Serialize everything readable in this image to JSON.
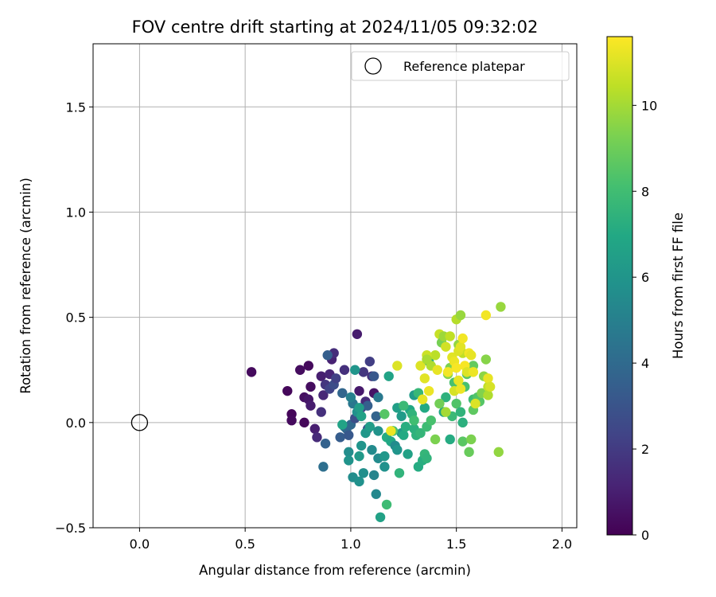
{
  "chart_data": {
    "type": "scatter",
    "title": "FOV centre drift starting at 2024/11/05 09:32:02",
    "xlabel": "Angular distance from reference (arcmin)",
    "ylabel": "Rotation from reference (arcmin)",
    "xlim": [
      -0.22,
      2.07
    ],
    "ylim": [
      -0.5,
      1.8
    ],
    "xticks": [
      0.0,
      0.5,
      1.0,
      1.5,
      2.0
    ],
    "xtick_labels": [
      "0.0",
      "0.5",
      "1.0",
      "1.5",
      "2.0"
    ],
    "yticks": [
      -0.5,
      0.0,
      0.5,
      1.0,
      1.5
    ],
    "ytick_labels": [
      "−0.5",
      "0.0",
      "0.5",
      "1.0",
      "1.5"
    ],
    "grid": true,
    "legend": {
      "position": "top-right",
      "entries": [
        "Reference platepar"
      ]
    },
    "colorbar": {
      "label": "Hours from first FF file",
      "range": [
        0,
        11.6
      ],
      "ticks": [
        0,
        2,
        4,
        6,
        8,
        10
      ],
      "tick_labels": [
        "0",
        "2",
        "4",
        "6",
        "8",
        "10"
      ],
      "colormap": "viridis"
    },
    "reference_point": {
      "name": "Reference platepar",
      "x": 0.0,
      "y": 0.0
    },
    "points": [
      [
        0.53,
        0.24,
        0.3
      ],
      [
        0.7,
        0.15,
        0.2
      ],
      [
        0.72,
        0.04,
        0.2
      ],
      [
        0.72,
        0.01,
        0.3
      ],
      [
        0.76,
        0.25,
        0.4
      ],
      [
        0.78,
        0.0,
        0.2
      ],
      [
        0.78,
        0.12,
        0.5
      ],
      [
        0.8,
        0.27,
        0.3
      ],
      [
        0.8,
        0.11,
        0.7
      ],
      [
        0.81,
        0.17,
        0.4
      ],
      [
        0.81,
        0.08,
        0.9
      ],
      [
        0.83,
        -0.03,
        1.0
      ],
      [
        0.84,
        -0.07,
        1.4
      ],
      [
        0.86,
        0.05,
        1.6
      ],
      [
        0.86,
        0.22,
        1.0
      ],
      [
        0.87,
        0.13,
        1.3
      ],
      [
        0.88,
        0.18,
        1.8
      ],
      [
        0.9,
        0.23,
        1.2
      ],
      [
        0.91,
        0.3,
        1.1
      ],
      [
        0.92,
        0.33,
        1.5
      ],
      [
        0.9,
        0.16,
        2.3
      ],
      [
        0.88,
        -0.1,
        3.6
      ],
      [
        0.87,
        -0.21,
        4.2
      ],
      [
        0.89,
        0.32,
        3.5
      ],
      [
        0.92,
        0.18,
        2.7
      ],
      [
        0.93,
        0.21,
        2.2
      ],
      [
        0.95,
        -0.07,
        3.4
      ],
      [
        0.96,
        0.14,
        3.8
      ],
      [
        0.97,
        0.25,
        1.6
      ],
      [
        0.97,
        -0.02,
        4.8
      ],
      [
        0.98,
        -0.03,
        3.9
      ],
      [
        0.99,
        -0.06,
        3.2
      ],
      [
        1.0,
        -0.01,
        3.9
      ],
      [
        1.01,
        0.09,
        4.6
      ],
      [
        1.02,
        0.02,
        2.8
      ],
      [
        1.03,
        0.42,
        0.9
      ],
      [
        1.04,
        0.15,
        0.8
      ],
      [
        1.05,
        0.07,
        2.5
      ],
      [
        1.06,
        0.24,
        1.8
      ],
      [
        1.07,
        0.1,
        1.4
      ],
      [
        1.08,
        0.08,
        3.5
      ],
      [
        1.08,
        -0.03,
        3.0
      ],
      [
        1.09,
        0.29,
        2.1
      ],
      [
        1.1,
        0.22,
        1.7
      ],
      [
        1.11,
        0.22,
        3.2
      ],
      [
        1.11,
        0.14,
        0.6
      ],
      [
        1.12,
        0.03,
        3.7
      ],
      [
        1.13,
        0.12,
        4.7
      ],
      [
        1.0,
        0.12,
        5.0
      ],
      [
        1.02,
        0.25,
        6.0
      ],
      [
        1.03,
        0.05,
        5.8
      ],
      [
        1.04,
        0.07,
        6.4
      ],
      [
        1.05,
        0.03,
        6.6
      ],
      [
        0.96,
        -0.01,
        6.7
      ],
      [
        0.99,
        -0.14,
        5.6
      ],
      [
        0.99,
        -0.18,
        5.9
      ],
      [
        1.01,
        -0.26,
        5.6
      ],
      [
        1.04,
        -0.28,
        5.8
      ],
      [
        1.06,
        -0.24,
        5.7
      ],
      [
        1.04,
        -0.16,
        6.2
      ],
      [
        1.05,
        -0.11,
        6.0
      ],
      [
        1.07,
        -0.05,
        6.1
      ],
      [
        1.09,
        -0.02,
        6.4
      ],
      [
        1.1,
        -0.13,
        5.5
      ],
      [
        1.11,
        -0.25,
        5.2
      ],
      [
        1.12,
        -0.34,
        5.4
      ],
      [
        1.13,
        -0.04,
        5.9
      ],
      [
        1.13,
        -0.17,
        5.5
      ],
      [
        1.14,
        -0.45,
        6.6
      ],
      [
        1.16,
        -0.16,
        6.1
      ],
      [
        1.16,
        -0.21,
        5.8
      ],
      [
        1.17,
        -0.07,
        7.1
      ],
      [
        1.18,
        0.22,
        6.7
      ],
      [
        1.19,
        -0.09,
        6.9
      ],
      [
        1.2,
        -0.04,
        6.8
      ],
      [
        1.21,
        -0.11,
        5.5
      ],
      [
        1.22,
        -0.13,
        6.0
      ],
      [
        1.22,
        0.07,
        6.5
      ],
      [
        1.24,
        -0.05,
        6.2
      ],
      [
        1.24,
        0.03,
        6.3
      ],
      [
        1.25,
        -0.06,
        7.0
      ],
      [
        1.26,
        -0.02,
        7.2
      ],
      [
        1.27,
        -0.15,
        6.6
      ],
      [
        1.28,
        0.06,
        6.9
      ],
      [
        1.29,
        0.04,
        7.5
      ],
      [
        1.3,
        -0.03,
        7.3
      ],
      [
        1.3,
        0.13,
        6.3
      ],
      [
        1.31,
        -0.06,
        7.4
      ],
      [
        1.32,
        0.14,
        6.6
      ],
      [
        1.32,
        -0.21,
        7.1
      ],
      [
        1.33,
        -0.05,
        7.6
      ],
      [
        1.34,
        -0.18,
        7.2
      ],
      [
        1.35,
        -0.15,
        7.6
      ],
      [
        1.35,
        0.07,
        7.0
      ],
      [
        1.36,
        -0.02,
        7.9
      ],
      [
        1.36,
        -0.17,
        7.5
      ],
      [
        1.37,
        0.29,
        7.2
      ],
      [
        1.38,
        0.01,
        8.2
      ],
      [
        1.17,
        -0.39,
        7.9
      ],
      [
        1.23,
        -0.24,
        7.5
      ],
      [
        1.25,
        0.08,
        7.8
      ],
      [
        1.3,
        0.01,
        8.0
      ],
      [
        1.32,
        0.14,
        7.7
      ],
      [
        1.2,
        -0.04,
        8.3
      ],
      [
        1.16,
        0.04,
        8.5
      ],
      [
        1.44,
        0.05,
        6.9
      ],
      [
        1.45,
        0.12,
        7.4
      ],
      [
        1.47,
        -0.08,
        7.1
      ],
      [
        1.48,
        0.03,
        7.8
      ],
      [
        1.49,
        0.19,
        8.2
      ],
      [
        1.5,
        0.09,
        8.4
      ],
      [
        1.52,
        0.05,
        7.5
      ],
      [
        1.53,
        0.0,
        7.3
      ],
      [
        1.53,
        -0.09,
        8.6
      ],
      [
        1.54,
        0.17,
        8.2
      ],
      [
        1.55,
        0.23,
        8.6
      ],
      [
        1.56,
        -0.14,
        8.9
      ],
      [
        1.57,
        -0.08,
        9.3
      ],
      [
        1.58,
        0.27,
        8.8
      ],
      [
        1.58,
        0.11,
        7.9
      ],
      [
        1.58,
        0.06,
        8.7
      ],
      [
        1.6,
        0.12,
        8.4
      ],
      [
        1.61,
        0.1,
        8.5
      ],
      [
        1.62,
        0.14,
        9.4
      ],
      [
        1.63,
        0.22,
        9.6
      ],
      [
        1.64,
        0.3,
        9.5
      ],
      [
        1.65,
        0.17,
        10.5
      ],
      [
        1.65,
        0.13,
        10.2
      ],
      [
        1.7,
        -0.14,
        9.7
      ],
      [
        1.71,
        0.55,
        9.8
      ],
      [
        1.4,
        -0.08,
        9.3
      ],
      [
        1.42,
        0.09,
        9.1
      ],
      [
        1.45,
        0.05,
        10.0
      ],
      [
        1.46,
        0.23,
        9.5
      ],
      [
        1.47,
        0.26,
        9.3
      ],
      [
        1.5,
        0.49,
        10.3
      ],
      [
        1.51,
        0.37,
        9.7
      ],
      [
        1.52,
        0.51,
        9.8
      ],
      [
        1.53,
        0.33,
        10.5
      ],
      [
        1.38,
        0.27,
        10.2
      ],
      [
        1.4,
        0.32,
        10.4
      ],
      [
        1.41,
        0.25,
        11.2
      ],
      [
        1.42,
        0.42,
        10.6
      ],
      [
        1.43,
        0.38,
        9.2
      ],
      [
        1.44,
        0.41,
        9.9
      ],
      [
        1.45,
        0.36,
        10.8
      ],
      [
        1.46,
        0.24,
        11.4
      ],
      [
        1.47,
        0.41,
        10.5
      ],
      [
        1.48,
        0.31,
        11.1
      ],
      [
        1.49,
        0.29,
        11.3
      ],
      [
        1.49,
        0.15,
        10.9
      ],
      [
        1.5,
        0.26,
        11.5
      ],
      [
        1.51,
        0.34,
        11.0
      ],
      [
        1.51,
        0.2,
        11.2
      ],
      [
        1.52,
        0.16,
        11.3
      ],
      [
        1.52,
        0.36,
        11.1
      ],
      [
        1.53,
        0.4,
        11.4
      ],
      [
        1.54,
        0.27,
        11.5
      ],
      [
        1.55,
        0.24,
        11.0
      ],
      [
        1.56,
        0.33,
        11.4
      ],
      [
        1.57,
        0.32,
        11.2
      ],
      [
        1.58,
        0.24,
        11.3
      ],
      [
        1.59,
        0.09,
        11.0
      ],
      [
        1.64,
        0.51,
        11.4
      ],
      [
        1.65,
        0.21,
        11.2
      ],
      [
        1.66,
        0.17,
        10.9
      ],
      [
        1.33,
        0.27,
        11.0
      ],
      [
        1.34,
        0.11,
        11.2
      ],
      [
        1.35,
        0.21,
        11.1
      ],
      [
        1.36,
        0.32,
        10.7
      ],
      [
        1.37,
        0.15,
        11.3
      ],
      [
        1.22,
        0.27,
        11.0
      ],
      [
        1.19,
        -0.04,
        11.3
      ],
      [
        1.36,
        0.3,
        10.1
      ]
    ]
  }
}
